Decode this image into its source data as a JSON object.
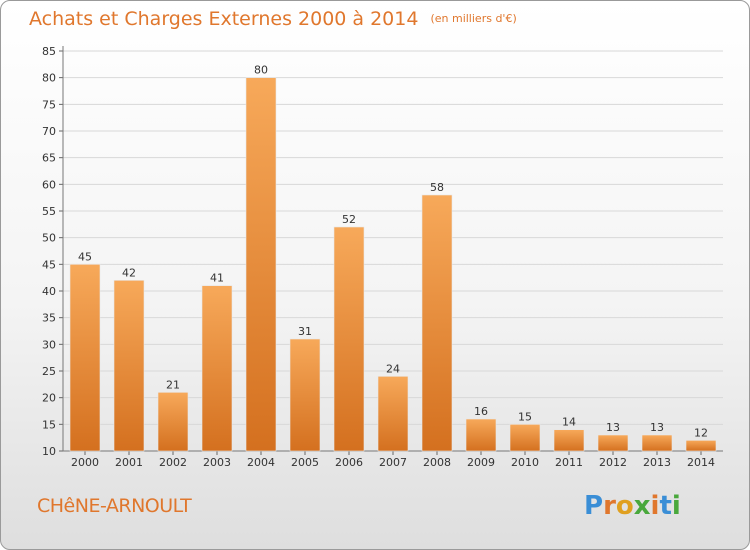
{
  "header": {
    "title": "Achats et Charges Externes 2000 à 2014",
    "unit": "(en milliers d'€)"
  },
  "footer": {
    "town": "CHêNE-ARNOULT",
    "logo": "Proxiti"
  },
  "colors": {
    "title": "#e0772d",
    "bar_light": "#f7a95a",
    "bar_dark": "#d4701f",
    "grid": "#d8d8d8"
  },
  "chart_data": {
    "type": "bar",
    "title": "Achats et Charges Externes 2000 à 2014",
    "categories": [
      "2000",
      "2001",
      "2002",
      "2003",
      "2004",
      "2005",
      "2006",
      "2007",
      "2008",
      "2009",
      "2010",
      "2011",
      "2012",
      "2013",
      "2014"
    ],
    "values": [
      45,
      42,
      21,
      41,
      80,
      31,
      52,
      24,
      58,
      16,
      15,
      14,
      13,
      13,
      12
    ],
    "ylim": [
      10,
      85
    ],
    "yticks": [
      10,
      15,
      20,
      25,
      30,
      35,
      40,
      45,
      50,
      55,
      60,
      65,
      70,
      75,
      80,
      85
    ],
    "grid": true,
    "xlabel": "",
    "ylabel": ""
  }
}
